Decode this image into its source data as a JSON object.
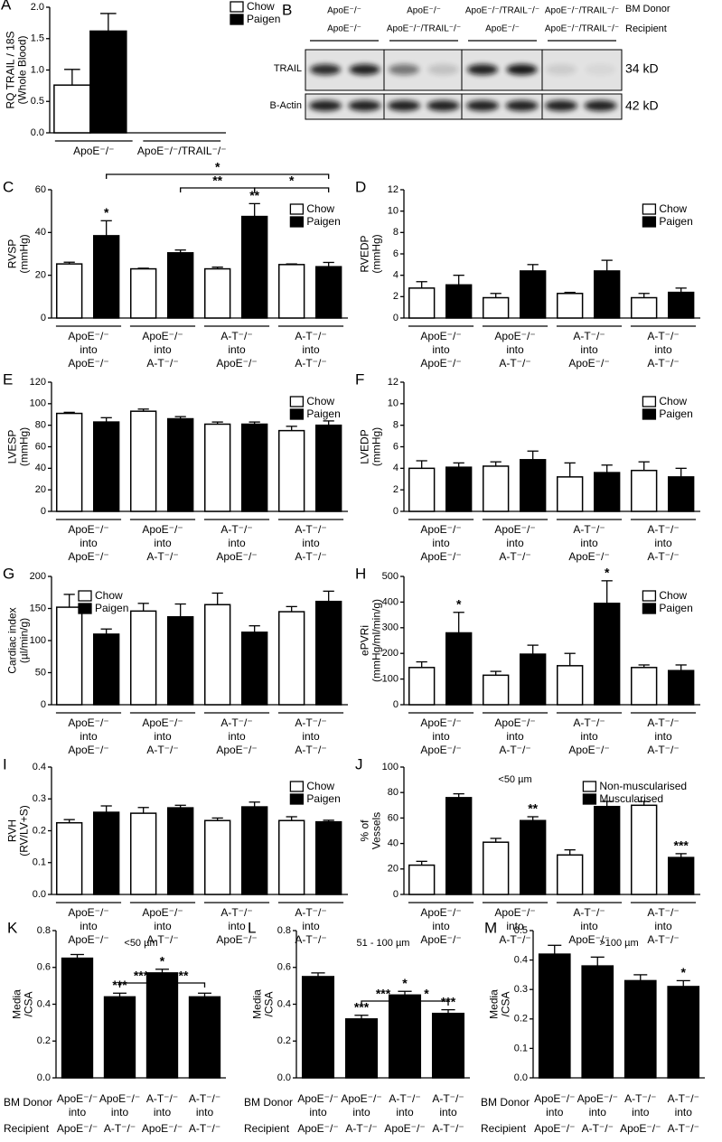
{
  "blot": {
    "label": "B",
    "donor_label": "BM Donor",
    "recipient_label": "Recipient",
    "donors": [
      "ApoE⁻/⁻",
      "ApoE⁻/⁻",
      "ApoE⁻/⁻/TRAIL⁻/⁻",
      "ApoE⁻/⁻/TRAIL⁻/⁻"
    ],
    "recipients": [
      "ApoE⁻/⁻",
      "ApoE⁻/⁻/TRAIL⁻/⁻",
      "ApoE⁻/⁻",
      "ApoE⁻/⁻/TRAIL⁻/⁻"
    ],
    "rows": [
      "TRAIL",
      "B-Actin"
    ],
    "sizes": [
      "34 kD",
      "42 kD"
    ]
  },
  "chart_data": [
    {
      "type": "bar",
      "label": "A",
      "ylabel": [
        "RQ TRAIL / 18S",
        "(Whole Blood)"
      ],
      "ylim": [
        0,
        2
      ],
      "yticks": [
        {
          "value": 0,
          "label": "0.0"
        },
        0.5,
        {
          "value": 1,
          "label": "1.0"
        },
        1.5,
        {
          "value": 2,
          "label": "2.0"
        }
      ],
      "categories": [
        [
          "ApoE⁻/⁻"
        ],
        [
          "ApoE⁻/⁻/TRAIL⁻/⁻"
        ]
      ],
      "legend": "upper right",
      "series": [
        {
          "name": "Chow",
          "color": "#ffffff",
          "values": [
            0.76,
            null
          ],
          "errors": [
            0.25,
            null
          ]
        },
        {
          "name": "Paigen",
          "color": "#000000",
          "values": [
            1.62,
            null
          ],
          "errors": [
            0.28,
            null
          ]
        }
      ]
    },
    {
      "type": "bar",
      "label": "C",
      "ylabel": [
        "RVSP",
        "(mmHg)"
      ],
      "ylim": [
        0,
        60
      ],
      "yticks": [
        0,
        20,
        40,
        60
      ],
      "categories": [
        [
          "ApoE⁻/⁻",
          "into",
          "ApoE⁻/⁻"
        ],
        [
          "ApoE⁻/⁻",
          "into",
          "A-T⁻/⁻"
        ],
        [
          "A-T⁻/⁻",
          "into",
          "ApoE⁻/⁻"
        ],
        [
          "A-T⁻/⁻",
          "into",
          "A-T⁻/⁻"
        ]
      ],
      "legend": "upper right",
      "brackets": [
        {
          "label": "*"
        },
        {
          "label": "**"
        },
        {
          "label": "*"
        }
      ],
      "series": [
        {
          "name": "Chow",
          "color": "#ffffff",
          "values": [
            25.3,
            23,
            23,
            25
          ],
          "errors": [
            0.8,
            0.3,
            0.8,
            0.3
          ]
        },
        {
          "name": "Paigen",
          "color": "#000000",
          "values": [
            38.5,
            30.5,
            47.5,
            24
          ],
          "errors": [
            7,
            1.3,
            6,
            2
          ],
          "stars": [
            "*",
            null,
            "**",
            null
          ]
        }
      ]
    },
    {
      "type": "bar",
      "label": "D",
      "ylabel": [
        "RVEDP",
        "(mmHg)"
      ],
      "ylim": [
        0,
        12
      ],
      "yticks": [
        0,
        2,
        4,
        6,
        8,
        10,
        12
      ],
      "categories": [
        [
          "ApoE⁻/⁻",
          "into",
          "ApoE⁻/⁻"
        ],
        [
          "ApoE⁻/⁻",
          "into",
          "A-T⁻/⁻"
        ],
        [
          "A-T⁻/⁻",
          "into",
          "ApoE⁻/⁻"
        ],
        [
          "A-T⁻/⁻",
          "into",
          "A-T⁻/⁻"
        ]
      ],
      "legend": "upper right",
      "series": [
        {
          "name": "Chow",
          "color": "#ffffff",
          "values": [
            2.8,
            1.9,
            2.3,
            1.9
          ],
          "errors": [
            0.6,
            0.4,
            0.1,
            0.4
          ]
        },
        {
          "name": "Paigen",
          "color": "#000000",
          "values": [
            3.1,
            4.4,
            4.4,
            2.4
          ],
          "errors": [
            0.9,
            0.6,
            1.0,
            0.4
          ]
        }
      ]
    },
    {
      "type": "bar",
      "label": "E",
      "ylabel": [
        "LVESP",
        "(mmHg)"
      ],
      "ylim": [
        0,
        120
      ],
      "yticks": [
        0,
        20,
        40,
        60,
        80,
        100,
        120
      ],
      "categories": [
        [
          "ApoE⁻/⁻",
          "into",
          "ApoE⁻/⁻"
        ],
        [
          "ApoE⁻/⁻",
          "into",
          "A-T⁻/⁻"
        ],
        [
          "A-T⁻/⁻",
          "into",
          "ApoE⁻/⁻"
        ],
        [
          "A-T⁻/⁻",
          "into",
          "A-T⁻/⁻"
        ]
      ],
      "legend": "upper right",
      "series": [
        {
          "name": "Chow",
          "color": "#ffffff",
          "values": [
            91,
            93,
            81,
            75
          ],
          "errors": [
            1,
            2,
            2,
            4
          ]
        },
        {
          "name": "Paigen",
          "color": "#000000",
          "values": [
            83,
            86,
            81,
            80
          ],
          "errors": [
            4,
            2,
            2,
            4
          ]
        }
      ]
    },
    {
      "type": "bar",
      "label": "F",
      "ylabel": [
        "LVEDP",
        "(mmHg)"
      ],
      "ylim": [
        0,
        12
      ],
      "yticks": [
        0,
        2,
        4,
        6,
        8,
        10,
        12
      ],
      "categories": [
        [
          "ApoE⁻/⁻",
          "into",
          "ApoE⁻/⁻"
        ],
        [
          "ApoE⁻/⁻",
          "into",
          "A-T⁻/⁻"
        ],
        [
          "A-T⁻/⁻",
          "into",
          "ApoE⁻/⁻"
        ],
        [
          "A-T⁻/⁻",
          "into",
          "A-T⁻/⁻"
        ]
      ],
      "legend": "upper right",
      "series": [
        {
          "name": "Chow",
          "color": "#ffffff",
          "values": [
            4.0,
            4.2,
            3.2,
            3.8
          ],
          "errors": [
            0.7,
            0.4,
            1.3,
            0.8
          ]
        },
        {
          "name": "Paigen",
          "color": "#000000",
          "values": [
            4.1,
            4.8,
            3.6,
            3.2
          ],
          "errors": [
            0.4,
            0.8,
            0.7,
            0.8
          ]
        }
      ]
    },
    {
      "type": "bar",
      "label": "G",
      "ylabel": [
        "Cardiac index",
        "(µl/min/g)"
      ],
      "ylim": [
        0,
        200
      ],
      "yticks": [
        0,
        50,
        100,
        150,
        200
      ],
      "categories": [
        [
          "ApoE⁻/⁻",
          "into",
          "ApoE⁻/⁻"
        ],
        [
          "ApoE⁻/⁻",
          "into",
          "A-T⁻/⁻"
        ],
        [
          "A-T⁻/⁻",
          "into",
          "ApoE⁻/⁻"
        ],
        [
          "A-T⁻/⁻",
          "into",
          "A-T⁻/⁻"
        ]
      ],
      "legend": "upper left",
      "series": [
        {
          "name": "Chow",
          "color": "#ffffff",
          "values": [
            152,
            146,
            156,
            145
          ],
          "errors": [
            20,
            12,
            18,
            8
          ]
        },
        {
          "name": "Paigen",
          "color": "#000000",
          "values": [
            110,
            137,
            113,
            161
          ],
          "errors": [
            8,
            20,
            10,
            16
          ]
        }
      ]
    },
    {
      "type": "bar",
      "label": "H",
      "ylabel": [
        "ePVRi",
        "(mmHg/ml/min/g)"
      ],
      "ylim": [
        0,
        500
      ],
      "yticks": [
        0,
        100,
        200,
        300,
        400,
        500
      ],
      "categories": [
        [
          "ApoE⁻/⁻",
          "into",
          "ApoE⁻/⁻"
        ],
        [
          "ApoE⁻/⁻",
          "into",
          "A-T⁻/⁻"
        ],
        [
          "A-T⁻/⁻",
          "into",
          "ApoE⁻/⁻"
        ],
        [
          "A-T⁻/⁻",
          "into",
          "A-T⁻/⁻"
        ]
      ],
      "legend": "upper right",
      "series": [
        {
          "name": "Chow",
          "color": "#ffffff",
          "values": [
            145,
            115,
            152,
            145
          ],
          "errors": [
            22,
            15,
            48,
            10
          ]
        },
        {
          "name": "Paigen",
          "color": "#000000",
          "values": [
            280,
            197,
            395,
            133
          ],
          "errors": [
            80,
            35,
            88,
            22
          ],
          "stars": [
            "*",
            null,
            "*",
            null
          ]
        }
      ]
    },
    {
      "type": "bar",
      "label": "I",
      "ylabel": [
        "RVH",
        "(RV/LV+S)"
      ],
      "ylim": [
        0,
        0.4
      ],
      "yticks": [
        {
          "value": 0,
          "label": "0.0"
        },
        0.1,
        0.2,
        0.3,
        0.4
      ],
      "categories": [
        [
          "ApoE⁻/⁻",
          "into",
          "ApoE⁻/⁻"
        ],
        [
          "ApoE⁻/⁻",
          "into",
          "A-T⁻/⁻"
        ],
        [
          "A-T⁻/⁻",
          "into",
          "ApoE⁻/⁻"
        ],
        [
          "A-T⁻/⁻",
          "into",
          "A-T⁻/⁻"
        ]
      ],
      "legend": "upper right",
      "series": [
        {
          "name": "Chow",
          "color": "#ffffff",
          "values": [
            0.225,
            0.255,
            0.232,
            0.232
          ],
          "errors": [
            0.01,
            0.018,
            0.008,
            0.012
          ]
        },
        {
          "name": "Paigen",
          "color": "#000000",
          "values": [
            0.258,
            0.272,
            0.275,
            0.228
          ],
          "errors": [
            0.02,
            0.008,
            0.015,
            0.005
          ]
        }
      ]
    },
    {
      "type": "bar",
      "label": "J",
      "ylabel": [
        "% of",
        "Vessels"
      ],
      "subtitle": "<50 µm",
      "ylim": [
        0,
        100
      ],
      "yticks": [
        0,
        20,
        40,
        60,
        80,
        100
      ],
      "categories": [
        [
          "ApoE⁻/⁻",
          "into",
          "ApoE⁻/⁻"
        ],
        [
          "ApoE⁻/⁻",
          "into",
          "A-T⁻/⁻"
        ],
        [
          "A-T⁻/⁻",
          "into",
          "ApoE⁻/⁻"
        ],
        [
          "A-T⁻/⁻",
          "into",
          "A-T⁻/⁻"
        ]
      ],
      "legend": "upper right",
      "series": [
        {
          "name": "Non-muscularised",
          "color": "#ffffff",
          "values": [
            23,
            41,
            31,
            70
          ],
          "errors": [
            3,
            3,
            4,
            3
          ]
        },
        {
          "name": "Muscularised",
          "color": "#000000",
          "values": [
            76,
            58,
            69,
            29
          ],
          "errors": [
            3,
            3,
            4,
            3
          ],
          "stars": [
            null,
            "**",
            null,
            "***"
          ]
        }
      ]
    },
    {
      "type": "bar",
      "label": "K",
      "ylabel": [
        "Media",
        "/CSA"
      ],
      "subtitle": "<50 µm",
      "ylim": [
        0,
        0.8
      ],
      "yticks": [
        {
          "value": 0,
          "label": "0.0"
        },
        0.2,
        0.4,
        0.6,
        0.8
      ],
      "row_labels": [
        "BM Donor",
        "Recipient"
      ],
      "categories": [
        [
          "ApoE⁻/⁻",
          "into",
          "ApoE⁻/⁻"
        ],
        [
          "ApoE⁻/⁻",
          "into",
          "A-T⁻/⁻"
        ],
        [
          "A-T⁻/⁻",
          "into",
          "ApoE⁻/⁻"
        ],
        [
          "A-T⁻/⁻",
          "into",
          "A-T⁻/⁻"
        ]
      ],
      "brackets": [
        {
          "label": "***"
        },
        {
          "label": "**"
        }
      ],
      "series": [
        {
          "color": "#000000",
          "values": [
            0.65,
            0.44,
            0.57,
            0.44
          ],
          "errors": [
            0.02,
            0.02,
            0.02,
            0.02
          ],
          "stars": [
            null,
            "***",
            "*",
            null
          ]
        }
      ]
    },
    {
      "type": "bar",
      "label": "L",
      "ylabel": [
        "Media",
        "/CSA"
      ],
      "subtitle": "51 - 100 µm",
      "ylim": [
        0,
        0.8
      ],
      "yticks": [
        {
          "value": 0,
          "label": "0.0"
        },
        0.2,
        0.4,
        0.6,
        0.8
      ],
      "row_labels": [
        "BM Donor",
        "Recipient"
      ],
      "categories": [
        [
          "ApoE⁻/⁻",
          "into",
          "ApoE⁻/⁻"
        ],
        [
          "ApoE⁻/⁻",
          "into",
          "A-T⁻/⁻"
        ],
        [
          "A-T⁻/⁻",
          "into",
          "ApoE⁻/⁻"
        ],
        [
          "A-T⁻/⁻",
          "into",
          "A-T⁻/⁻"
        ]
      ],
      "brackets": [
        {
          "label": "***"
        },
        {
          "label": "*"
        }
      ],
      "series": [
        {
          "color": "#000000",
          "values": [
            0.55,
            0.32,
            0.45,
            0.35
          ],
          "errors": [
            0.02,
            0.02,
            0.02,
            0.02
          ],
          "stars": [
            null,
            "***",
            "*",
            "***"
          ]
        }
      ]
    },
    {
      "type": "bar",
      "label": "M",
      "ylabel": [
        "Media",
        "/CSA"
      ],
      "subtitle": ">100 µm",
      "ylim": [
        0,
        0.5
      ],
      "yticks": [
        {
          "value": 0,
          "label": "0.0"
        },
        0.1,
        0.2,
        0.3,
        0.4,
        0.5
      ],
      "row_labels": [
        "BM Donor",
        "Recipient"
      ],
      "categories": [
        [
          "ApoE⁻/⁻",
          "into",
          "ApoE⁻/⁻"
        ],
        [
          "ApoE⁻/⁻",
          "into",
          "A-T⁻/⁻"
        ],
        [
          "A-T⁻/⁻",
          "into",
          "ApoE⁻/⁻"
        ],
        [
          "A-T⁻/⁻",
          "into",
          "A-T⁻/⁻"
        ]
      ],
      "series": [
        {
          "color": "#000000",
          "values": [
            0.42,
            0.38,
            0.33,
            0.31
          ],
          "errors": [
            0.03,
            0.03,
            0.02,
            0.02
          ],
          "stars": [
            null,
            null,
            null,
            "*"
          ]
        }
      ]
    }
  ]
}
